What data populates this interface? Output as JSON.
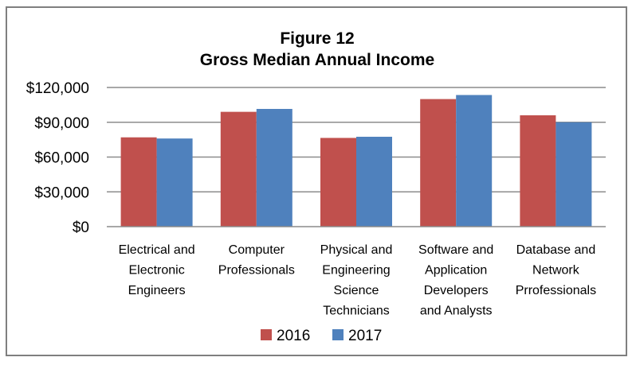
{
  "chart_data": {
    "type": "bar",
    "title": "Figure 12",
    "subtitle": "Gross Median Annual Income",
    "xlabel": "",
    "ylabel": "",
    "ylim": [
      0,
      120000
    ],
    "yticks": [
      0,
      30000,
      60000,
      90000,
      120000
    ],
    "ytick_labels": [
      "$0",
      "$30,000",
      "$60,000",
      "$90,000",
      "$120,000"
    ],
    "grid": true,
    "legend_position": "bottom",
    "categories": [
      [
        "Electrical and",
        "Electronic",
        "Engineers"
      ],
      [
        "Computer",
        "Professionals"
      ],
      [
        "Physical and",
        "Engineering",
        "Science",
        "Technicians"
      ],
      [
        "Software and",
        "Application",
        "Developers",
        "and Analysts"
      ],
      [
        "Database and",
        "Network",
        "Prrofessionals"
      ]
    ],
    "series": [
      {
        "name": "2016",
        "color": "#c0504d",
        "values": [
          77000,
          99000,
          76500,
          110000,
          96000
        ]
      },
      {
        "name": "2017",
        "color": "#4f81bd",
        "values": [
          76000,
          101500,
          77500,
          113500,
          90000
        ]
      }
    ]
  }
}
